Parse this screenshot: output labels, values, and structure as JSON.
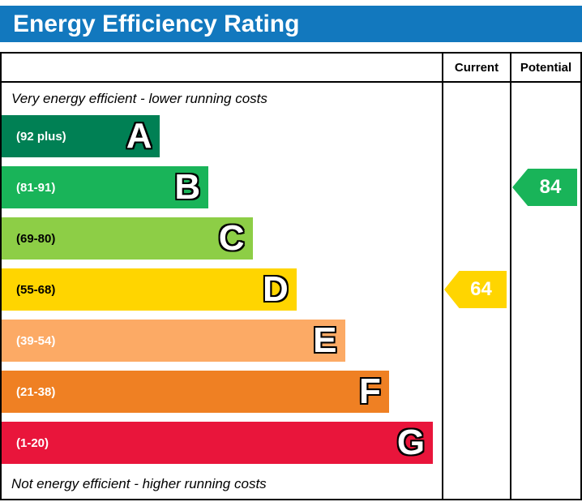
{
  "title_bar": {
    "title": "Energy Efficiency Rating",
    "background": "#1278be",
    "text_color": "#ffffff"
  },
  "columns": {
    "current_label": "Current",
    "potential_label": "Potential"
  },
  "notes": {
    "top": "Very energy efficient - lower running costs",
    "bottom": "Not energy efficient - higher running costs"
  },
  "chart_data": {
    "type": "bar",
    "orientation": "horizontal",
    "title": "Energy Efficiency Rating",
    "categories": [
      "A",
      "B",
      "C",
      "D",
      "E",
      "F",
      "G"
    ],
    "bands": [
      {
        "letter": "A",
        "range_label": "(92 plus)",
        "min": 92,
        "max": 100,
        "color": "#008054",
        "range_text_color": "#ffffff",
        "width_pct": 36
      },
      {
        "letter": "B",
        "range_label": "(81-91)",
        "min": 81,
        "max": 91,
        "color": "#19b459",
        "range_text_color": "#ffffff",
        "width_pct": 47
      },
      {
        "letter": "C",
        "range_label": "(69-80)",
        "min": 69,
        "max": 80,
        "color": "#8dce46",
        "range_text_color": "#000000",
        "width_pct": 57
      },
      {
        "letter": "D",
        "range_label": "(55-68)",
        "min": 55,
        "max": 68,
        "color": "#ffd500",
        "range_text_color": "#000000",
        "width_pct": 67
      },
      {
        "letter": "E",
        "range_label": "(39-54)",
        "min": 39,
        "max": 54,
        "color": "#fcaa65",
        "range_text_color": "#ffffff",
        "width_pct": 78
      },
      {
        "letter": "F",
        "range_label": "(21-38)",
        "min": 21,
        "max": 38,
        "color": "#ef8023",
        "range_text_color": "#ffffff",
        "width_pct": 88
      },
      {
        "letter": "G",
        "range_label": "(1-20)",
        "min": 1,
        "max": 20,
        "color": "#e9153b",
        "range_text_color": "#ffffff",
        "width_pct": 98
      }
    ],
    "markers": {
      "current": {
        "value": 64,
        "band": "D",
        "color": "#ffd500"
      },
      "potential": {
        "value": 84,
        "band": "B",
        "color": "#19b459"
      }
    }
  }
}
